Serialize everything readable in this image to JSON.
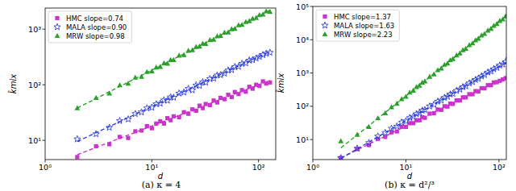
{
  "chart_data": [
    {
      "type": "scatter",
      "caption": "(a) κ = 4",
      "xlabel": "d",
      "ylabel": "k̂mix",
      "log": true,
      "grid": false,
      "legend": "upper left",
      "xlim": [
        1,
        145
      ],
      "ylim": [
        4.5,
        2400
      ],
      "xticks": [
        {
          "value": 1,
          "label": "10⁰"
        },
        {
          "value": 10,
          "label": "10¹"
        },
        {
          "value": 100,
          "label": "10²"
        }
      ],
      "yticks": [
        {
          "value": 10,
          "label": "10¹"
        },
        {
          "value": 100,
          "label": "10²"
        },
        {
          "value": 1000,
          "label": "10³"
        }
      ],
      "x": [
        2,
        3,
        4,
        5,
        6,
        7,
        8,
        9,
        10,
        11,
        12,
        13,
        14,
        15,
        16,
        18,
        20,
        22,
        24,
        26,
        28,
        30,
        32,
        35,
        38,
        41,
        44,
        48,
        52,
        56,
        60,
        65,
        70,
        76,
        82,
        88,
        95,
        102,
        110,
        118,
        128
      ],
      "series": [
        {
          "name": "HMC slope=0.74",
          "color": "#cc33cc",
          "marker": "square",
          "line_style": "dashed",
          "values": [
            5,
            7.8,
            8.5,
            11.5,
            11,
            14.5,
            15,
            18,
            16.5,
            20,
            22,
            20,
            25,
            23,
            27,
            26,
            32,
            30,
            36,
            34,
            42,
            38,
            45,
            43,
            52,
            48,
            58,
            55,
            66,
            60,
            74,
            68,
            80,
            75,
            92,
            85,
            100,
            95,
            115,
            105,
            110
          ],
          "fit": [
            5.5,
            120
          ]
        },
        {
          "name": "MALA slope=0.90",
          "color": "#2f3fe0",
          "marker": "star",
          "line_style": "dashed",
          "values": [
            10.5,
            13,
            17,
            22.5,
            24,
            30,
            32,
            38,
            39,
            45,
            46,
            53,
            52,
            60,
            59,
            70,
            73,
            85,
            80,
            98,
            96,
            112,
            110,
            128,
            130,
            148,
            150,
            160,
            182,
            185,
            210,
            212,
            240,
            245,
            275,
            280,
            300,
            320,
            345,
            365,
            380
          ],
          "fit": [
            9.5,
            400
          ]
        },
        {
          "name": "MRW slope=0.98",
          "color": "#2ca02c",
          "marker": "triangle",
          "line_style": "dashed",
          "values": [
            38,
            58,
            70,
            98,
            105,
            135,
            140,
            170,
            175,
            205,
            210,
            245,
            240,
            280,
            280,
            335,
            345,
            410,
            420,
            480,
            490,
            550,
            545,
            640,
            650,
            750,
            760,
            870,
            880,
            1000,
            1020,
            1180,
            1200,
            1350,
            1400,
            1550,
            1600,
            1800,
            1850,
            2100,
            2050
          ],
          "fit": [
            38,
            2200
          ]
        }
      ]
    },
    {
      "type": "scatter",
      "caption": "(b) κ = d²/³",
      "xlabel": "d",
      "ylabel": "k̂mix",
      "log": true,
      "grid": false,
      "legend": "upper left",
      "xlim": [
        1,
        120
      ],
      "ylim": [
        2.5,
        100000
      ],
      "xticks": [
        {
          "value": 1,
          "label": "10⁰"
        },
        {
          "value": 10,
          "label": "10¹"
        },
        {
          "value": 100,
          "label": "10²"
        }
      ],
      "yticks": [
        {
          "value": 10,
          "label": "10¹"
        },
        {
          "value": 100,
          "label": "10²"
        },
        {
          "value": 1000,
          "label": "10³"
        },
        {
          "value": 10000,
          "label": "10⁴"
        },
        {
          "value": 100000,
          "label": "10⁵"
        }
      ],
      "x": [
        2,
        3,
        4,
        5,
        6,
        7,
        8,
        9,
        10,
        11,
        12,
        13,
        14,
        15,
        16,
        18,
        20,
        22,
        24,
        26,
        28,
        30,
        32,
        35,
        38,
        41,
        44,
        48,
        52,
        56,
        60,
        65,
        70,
        76,
        82,
        88,
        95,
        102,
        110,
        118,
        128
      ],
      "series": [
        {
          "name": "HMC slope=1.37",
          "color": "#cc33cc",
          "marker": "square",
          "line_style": "dashed",
          "values": [
            2.8,
            5.2,
            6.8,
            10.5,
            12,
            16.5,
            17.5,
            24,
            24,
            31,
            31,
            38,
            38,
            47,
            45,
            60,
            62,
            80,
            78,
            100,
            98,
            120,
            118,
            150,
            150,
            185,
            185,
            230,
            230,
            285,
            280,
            350,
            345,
            430,
            430,
            520,
            530,
            580,
            640,
            700,
            800
          ],
          "fit": [
            2.8,
            835
          ]
        },
        {
          "name": "MALA slope=1.63",
          "color": "#2f3fe0",
          "marker": "star",
          "line_style": "dashed",
          "values": [
            2.8,
            5.4,
            8,
            12.5,
            16,
            21.5,
            25,
            33,
            36,
            45,
            49,
            59,
            63,
            75,
            78,
            100,
            112,
            140,
            150,
            182,
            195,
            230,
            240,
            295,
            320,
            380,
            405,
            495,
            540,
            630,
            680,
            800,
            880,
            1050,
            1130,
            1320,
            1450,
            1700,
            1820,
            2150,
            2700
          ],
          "fit": [
            2.7,
            2374
          ]
        },
        {
          "name": "MRW slope=2.23",
          "color": "#2ca02c",
          "marker": "triangle",
          "line_style": "dashed",
          "values": [
            9,
            14,
            24,
            44,
            62,
            95,
            120,
            165,
            195,
            260,
            295,
            380,
            420,
            520,
            560,
            780,
            920,
            1220,
            1380,
            1780,
            1950,
            2450,
            2650,
            3400,
            3900,
            4900,
            5400,
            6900,
            7800,
            9700,
            10800,
            13500,
            15000,
            19000,
            21500,
            26500,
            30000,
            37000,
            41000,
            51000,
            60000
          ],
          "fit": [
            5.6,
            59750
          ]
        }
      ]
    }
  ]
}
